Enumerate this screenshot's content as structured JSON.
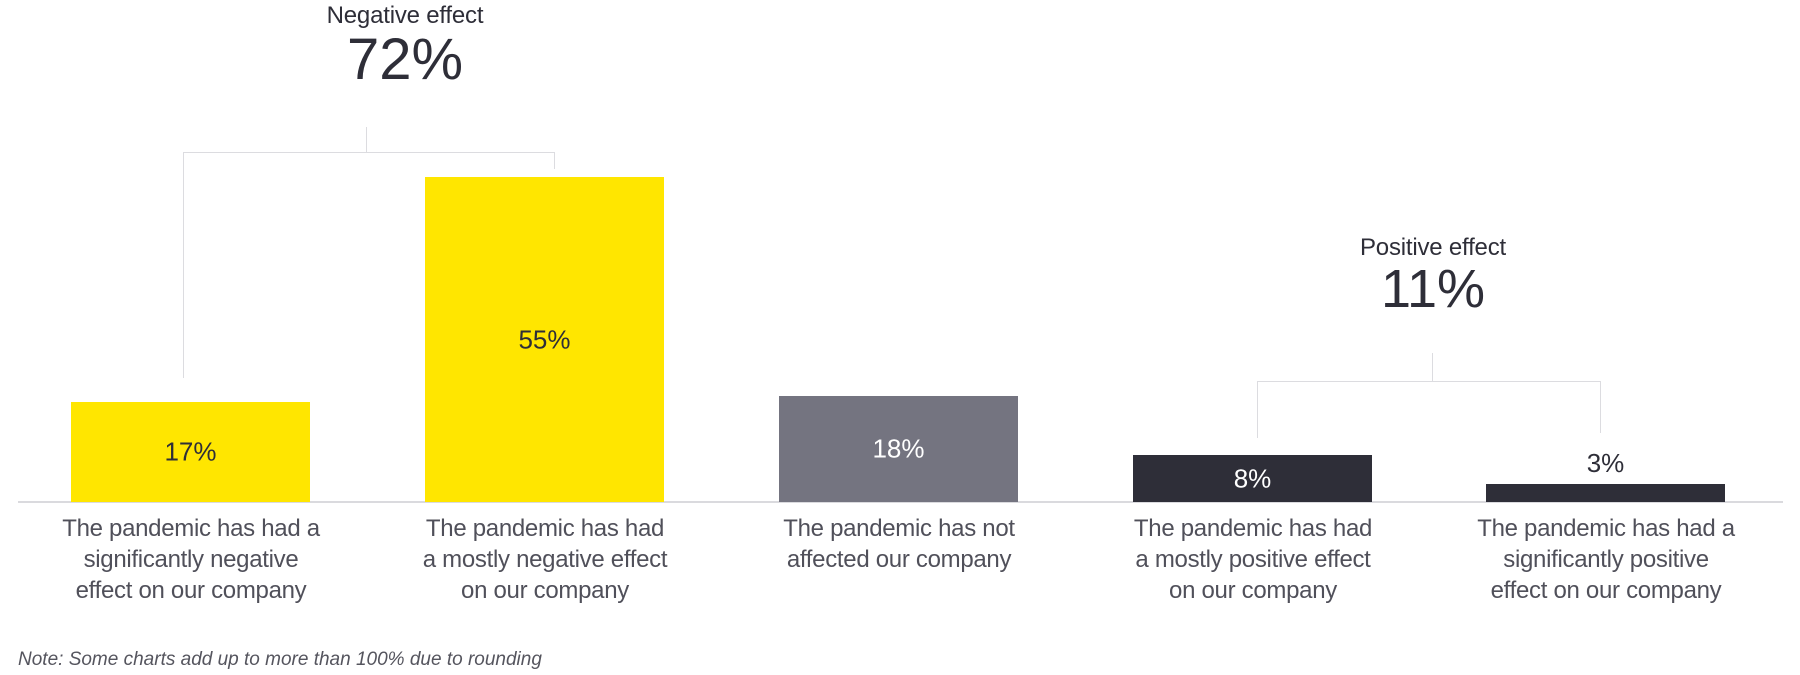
{
  "chart_data": {
    "type": "bar",
    "unit": "%",
    "categories": [
      "The pandemic has had a significantly negative effect on our company",
      "The pandemic has had a mostly negative effect on our company",
      "The pandemic has not affected our company",
      "The pandemic has had a mostly positive effect on our company",
      "The pandemic has had a significantly positive effect on our company"
    ],
    "values": [
      17,
      55,
      18,
      8,
      3
    ],
    "value_labels": [
      "17%",
      "55%",
      "18%",
      "8%",
      "3%"
    ],
    "series_colors": [
      "#FFE600",
      "#FFE600",
      "#747480",
      "#2E2E38",
      "#2E2E38"
    ],
    "groups": [
      {
        "label": "Negative effect",
        "value": 72,
        "value_label": "72%",
        "bars": [
          0,
          1
        ]
      },
      {
        "label": "Positive effect",
        "value": 11,
        "value_label": "11%",
        "bars": [
          3,
          4
        ]
      }
    ],
    "ylim": [
      0,
      60
    ],
    "grid": false,
    "legend": "none",
    "note": "Note: Some charts add up to more than 100% due to rounding"
  },
  "captions": [
    "The pandemic has had a\nsignificantly negative\neffect on our company",
    "The pandemic has had\na mostly negative effect\non our company",
    "The pandemic has not\naffected our company",
    "The pandemic has had\na mostly positive effect\non our company",
    "The pandemic has had a\nsignificantly positive\neffect on our company"
  ],
  "colors": {
    "brand_yellow": "#FFE600",
    "neutral_gray": "#747480",
    "brand_dark": "#2E2E38",
    "caption_text": "#50505A",
    "bracket_line": "#DCDCE0"
  }
}
